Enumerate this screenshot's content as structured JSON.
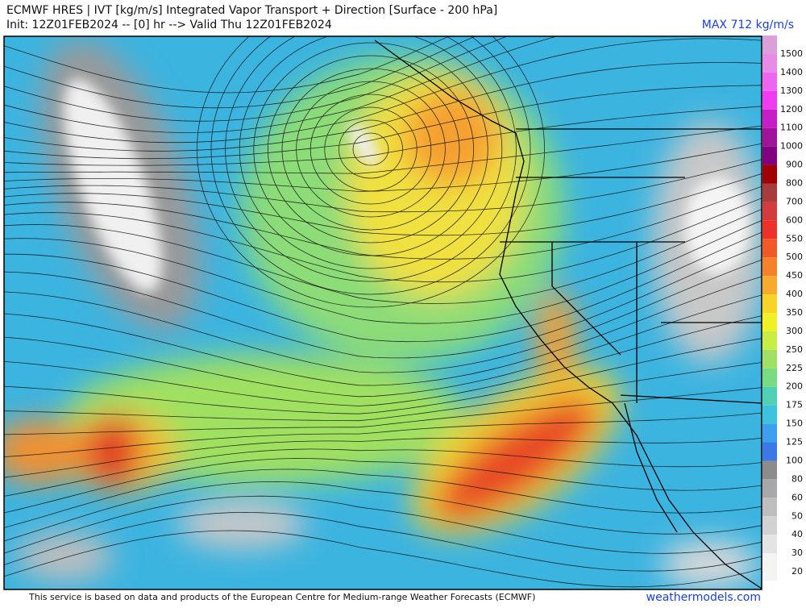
{
  "header": {
    "title": "ECMWF HRES | IVT [kg/m/s] Integrated Vapor Transport + Direction [Surface - 200 hPa]",
    "init": "Init: 12Z01FEB2024 -- [0] hr --> Valid Thu 12Z01FEB2024",
    "max": "MAX 712 kg/m/s"
  },
  "colorbar": {
    "levels": [
      {
        "value": 1500,
        "color": "#d9a0d9"
      },
      {
        "value": 1400,
        "color": "#e68ce6"
      },
      {
        "value": 1300,
        "color": "#ee66ee"
      },
      {
        "value": 1200,
        "color": "#f03cf0"
      },
      {
        "value": 1100,
        "color": "#c81ec8"
      },
      {
        "value": 1000,
        "color": "#a0149a"
      },
      {
        "value": 900,
        "color": "#800080"
      },
      {
        "value": 800,
        "color": "#a00000"
      },
      {
        "value": 700,
        "color": "#a83c3c"
      },
      {
        "value": 600,
        "color": "#d23c3c"
      },
      {
        "value": 550,
        "color": "#ec3228"
      },
      {
        "value": 500,
        "color": "#f05a28"
      },
      {
        "value": 450,
        "color": "#f5822a"
      },
      {
        "value": 400,
        "color": "#f8aa30"
      },
      {
        "value": 350,
        "color": "#f8d428"
      },
      {
        "value": 300,
        "color": "#f0f028"
      },
      {
        "value": 250,
        "color": "#c8ee46"
      },
      {
        "value": 225,
        "color": "#a0e064"
      },
      {
        "value": 200,
        "color": "#78dc82"
      },
      {
        "value": 175,
        "color": "#50d0b4"
      },
      {
        "value": 150,
        "color": "#3cc4dc"
      },
      {
        "value": 125,
        "color": "#3ca0ee"
      },
      {
        "value": 100,
        "color": "#3c78e6"
      },
      {
        "value": 80,
        "color": "#8c8c8c"
      },
      {
        "value": 60,
        "color": "#a8a8a8"
      },
      {
        "value": 50,
        "color": "#bebebe"
      },
      {
        "value": 40,
        "color": "#d2d2d2"
      },
      {
        "value": 30,
        "color": "#e4e4e4"
      },
      {
        "value": 20,
        "color": "#f4f4f4"
      }
    ]
  },
  "footer": {
    "credit": "This service is based on data and products of the European Centre for Medium-range Weather Forecasts (ECMWF)",
    "site": "weathermodels.com"
  }
}
